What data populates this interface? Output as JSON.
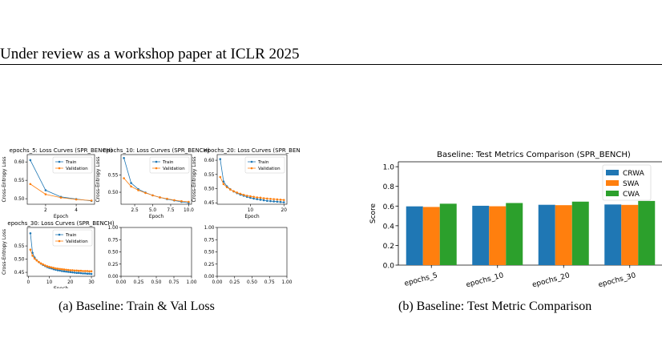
{
  "header": {
    "text": "Under review as a workshop paper at ICLR 2025"
  },
  "captions": {
    "a": "(a)  Baseline: Train & Val Loss",
    "b": "(b)  Baseline: Test Metric Comparison"
  },
  "colors": {
    "blue": "#1f77b4",
    "orange": "#ff7f0e",
    "green": "#2ca02c"
  },
  "chart_data": [
    {
      "type": "line",
      "title": "epochs_5: Loss Curves (SPR_BENCH)",
      "xlabel": "Epoch",
      "ylabel": "Cross-Entropy Loss",
      "xlim": [
        0.8,
        5.2
      ],
      "ylim": [
        0.485,
        0.62
      ],
      "xticks": [
        2,
        4
      ],
      "yticks": [
        0.5,
        0.55,
        0.6
      ],
      "tick_decimals": 2,
      "legend": "upper right",
      "x": [
        1,
        2,
        3,
        4,
        5
      ],
      "series": [
        {
          "name": "Train",
          "values": [
            0.605,
            0.523,
            0.505,
            0.499,
            0.494
          ]
        },
        {
          "name": "Validation",
          "values": [
            0.54,
            0.512,
            0.503,
            0.498,
            0.495
          ]
        }
      ]
    },
    {
      "type": "line",
      "title": "epochs_10: Loss Curves (SPR_BENCH)",
      "xlabel": "Epoch",
      "ylabel": "Cross-Entropy Loss",
      "xlim": [
        0.6,
        10.4
      ],
      "ylim": [
        0.465,
        0.61
      ],
      "xticks": [
        2.5,
        5.0,
        7.5,
        10.0
      ],
      "yticks": [
        0.5,
        0.55
      ],
      "tick_decimals": 2,
      "xtick_decimals": 1,
      "legend": "upper right",
      "x": [
        1,
        2,
        3,
        4,
        5,
        6,
        7,
        8,
        9,
        10
      ],
      "series": [
        {
          "name": "Train",
          "values": [
            0.6,
            0.527,
            0.509,
            0.499,
            0.491,
            0.485,
            0.48,
            0.476,
            0.472,
            0.469
          ]
        },
        {
          "name": "Validation",
          "values": [
            0.541,
            0.517,
            0.506,
            0.498,
            0.491,
            0.485,
            0.481,
            0.477,
            0.474,
            0.472
          ]
        }
      ]
    },
    {
      "type": "line",
      "title": "epochs_20: Loss Curves (SPR_BEN",
      "xlabel": "Epoch",
      "ylabel": "Cross-Entropy Loss",
      "xlim": [
        0.1,
        20.9
      ],
      "ylim": [
        0.445,
        0.62
      ],
      "xticks": [
        10,
        20
      ],
      "yticks": [
        0.45,
        0.5,
        0.55,
        0.6
      ],
      "tick_decimals": 2,
      "legend": "upper right",
      "x": [
        1,
        2,
        3,
        4,
        5,
        6,
        7,
        8,
        9,
        10,
        11,
        12,
        13,
        14,
        15,
        16,
        17,
        18,
        19,
        20
      ],
      "series": [
        {
          "name": "Train",
          "values": [
            0.604,
            0.525,
            0.508,
            0.498,
            0.49,
            0.484,
            0.479,
            0.475,
            0.471,
            0.468,
            0.465,
            0.463,
            0.461,
            0.459,
            0.457,
            0.456,
            0.455,
            0.454,
            0.453,
            0.452
          ]
        },
        {
          "name": "Validation",
          "values": [
            0.541,
            0.516,
            0.505,
            0.497,
            0.491,
            0.486,
            0.482,
            0.478,
            0.475,
            0.473,
            0.471,
            0.469,
            0.468,
            0.466,
            0.465,
            0.464,
            0.463,
            0.462,
            0.461,
            0.46
          ]
        }
      ]
    },
    {
      "type": "line",
      "title": "epochs_30: Loss Curves (SPR_BENCH)",
      "xlabel": "Epoch",
      "ylabel": "Cross-Entropy Loss",
      "xlim": [
        -0.5,
        31.5
      ],
      "ylim": [
        0.435,
        0.62
      ],
      "xticks": [
        0,
        10,
        20,
        30
      ],
      "yticks": [
        0.45,
        0.5,
        0.55
      ],
      "tick_decimals": 2,
      "legend": "upper right",
      "x": [
        1,
        2,
        3,
        4,
        5,
        6,
        7,
        8,
        9,
        10,
        11,
        12,
        13,
        14,
        15,
        16,
        17,
        18,
        19,
        20,
        21,
        22,
        23,
        24,
        25,
        26,
        27,
        28,
        29,
        30
      ],
      "series": [
        {
          "name": "Train",
          "values": [
            0.598,
            0.524,
            0.506,
            0.496,
            0.489,
            0.483,
            0.478,
            0.474,
            0.47,
            0.467,
            0.465,
            0.462,
            0.46,
            0.458,
            0.457,
            0.455,
            0.454,
            0.453,
            0.452,
            0.451,
            0.45,
            0.449,
            0.448,
            0.448,
            0.447,
            0.446,
            0.446,
            0.445,
            0.445,
            0.444
          ]
        },
        {
          "name": "Validation",
          "values": [
            0.536,
            0.513,
            0.502,
            0.495,
            0.489,
            0.484,
            0.48,
            0.476,
            0.473,
            0.471,
            0.469,
            0.467,
            0.465,
            0.464,
            0.463,
            0.462,
            0.461,
            0.46,
            0.459,
            0.458,
            0.458,
            0.457,
            0.457,
            0.456,
            0.456,
            0.455,
            0.455,
            0.455,
            0.454,
            0.454
          ]
        }
      ]
    },
    {
      "type": "line",
      "empty": true,
      "title": "",
      "xlabel": "",
      "ylabel": "",
      "xlim": [
        0,
        1
      ],
      "ylim": [
        0,
        1
      ],
      "xticks": [
        0.0,
        0.25,
        0.5,
        0.75,
        1.0
      ],
      "yticks": [
        0.0,
        0.25,
        0.5,
        0.75,
        1.0
      ],
      "tick_decimals": 2,
      "x": [],
      "series": []
    },
    {
      "type": "line",
      "empty": true,
      "title": "",
      "xlabel": "",
      "ylabel": "",
      "xlim": [
        0,
        1
      ],
      "ylim": [
        0,
        1
      ],
      "xticks": [
        0.0,
        0.25,
        0.5,
        0.75,
        1.0
      ],
      "yticks": [
        0.0,
        0.25,
        0.5,
        0.75,
        1.0
      ],
      "tick_decimals": 2,
      "x": [],
      "series": []
    },
    {
      "type": "bar",
      "title": "Baseline: Test Metrics Comparison (SPR_BENCH)",
      "xlabel": "",
      "ylabel": "Score",
      "ylim": [
        0,
        1.05
      ],
      "yticks": [
        0.0,
        0.2,
        0.4,
        0.6,
        0.8,
        1.0
      ],
      "tick_decimals": 1,
      "legend": "upper right",
      "categories": [
        "epochs_5",
        "epochs_10",
        "epochs_20",
        "epochs_30"
      ],
      "series": [
        {
          "name": "CRWA",
          "values": [
            0.597,
            0.603,
            0.613,
            0.616
          ]
        },
        {
          "name": "SWA",
          "values": [
            0.591,
            0.598,
            0.609,
            0.612
          ]
        },
        {
          "name": "CWA",
          "values": [
            0.624,
            0.631,
            0.645,
            0.652
          ]
        }
      ]
    }
  ]
}
